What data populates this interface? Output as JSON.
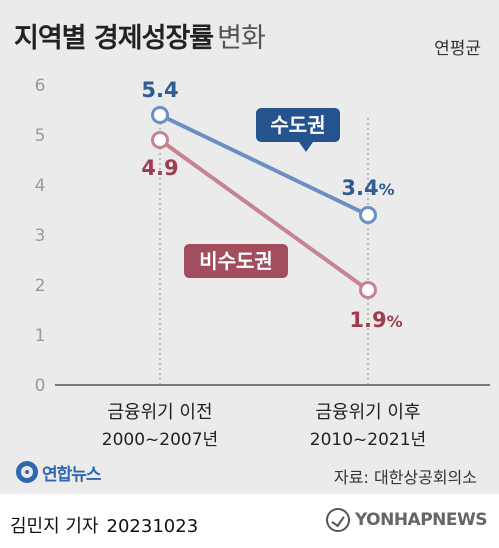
{
  "header": {
    "title_main": "지역별 경제성장률",
    "title_sub": "변화",
    "unit": "연평균"
  },
  "chart_data": {
    "type": "line",
    "categories": [
      {
        "label": "금융위기 이전",
        "period": "2000~2007년"
      },
      {
        "label": "금융위기 이후",
        "period": "2010~2021년"
      }
    ],
    "yticks": [
      "0",
      "1",
      "2",
      "3",
      "4",
      "5",
      "6"
    ],
    "ylim": [
      0,
      6
    ],
    "grid": false,
    "series": [
      {
        "name": "수도권",
        "values": [
          5.4,
          3.4
        ],
        "labels": [
          "5.4",
          "3.4%"
        ],
        "color": "#6a8fc2",
        "label_color": "#2f5c92",
        "badge_color": "#24538e"
      },
      {
        "name": "비수도권",
        "values": [
          4.9,
          1.9
        ],
        "labels": [
          "4.9",
          "1.9%"
        ],
        "color": "#c5848f",
        "label_color": "#9d3d50",
        "badge_color": "#a24d5d"
      }
    ]
  },
  "footer": {
    "logo_text": "연합뉴스",
    "source": "자료: 대한상공회의소",
    "byline": "김민지 기자",
    "date": "20231023",
    "agency": "YONHAPNEWS"
  }
}
